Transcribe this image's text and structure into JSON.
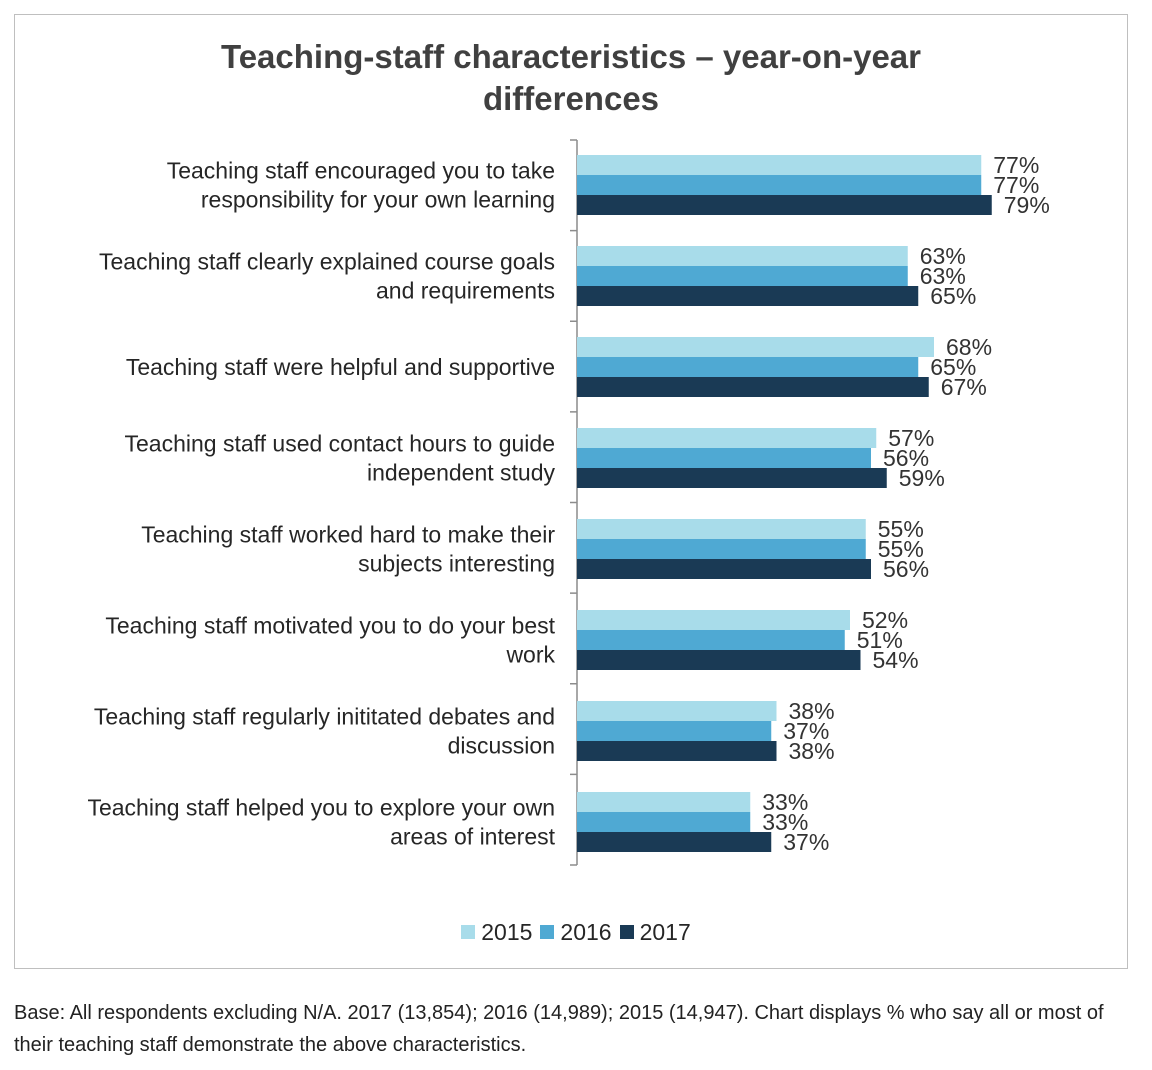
{
  "title_lines": [
    "Teaching-staff characteristics – year-on-year",
    "differences"
  ],
  "footnote": "Base: All respondents excluding N/A. 2017 (13,854); 2016 (14,989); 2015 (14,947). Chart displays % who say all or most of their teaching staff demonstrate the above characteristics.",
  "chart_data": {
    "type": "bar",
    "orientation": "horizontal",
    "title": "Teaching-staff characteristics – year-on-year differences",
    "categories": [
      [
        "Teaching staff encouraged you to take",
        "responsibility for your own learning"
      ],
      [
        "Teaching staff clearly explained course goals",
        "and requirements"
      ],
      [
        "Teaching staff were helpful and supportive"
      ],
      [
        "Teaching staff used contact hours to guide",
        "independent study"
      ],
      [
        "Teaching staff worked hard to make their",
        "subjects interesting"
      ],
      [
        "Teaching staff motivated you to do your best",
        "work"
      ],
      [
        "Teaching staff regularly inititated debates and",
        "discussion"
      ],
      [
        "Teaching staff helped you to explore your own",
        "areas of interest"
      ]
    ],
    "series": [
      {
        "name": "2015",
        "color": "#a8dcea",
        "values": [
          77,
          63,
          68,
          57,
          55,
          52,
          38,
          33
        ]
      },
      {
        "name": "2016",
        "color": "#4fa9d3",
        "values": [
          77,
          63,
          65,
          56,
          55,
          51,
          37,
          33
        ]
      },
      {
        "name": "2017",
        "color": "#1a3a55",
        "values": [
          79,
          65,
          67,
          59,
          56,
          54,
          38,
          37
        ]
      }
    ],
    "value_suffix": "%",
    "xlim": [
      0,
      100
    ],
    "grid": false,
    "legend_position": "bottom"
  }
}
